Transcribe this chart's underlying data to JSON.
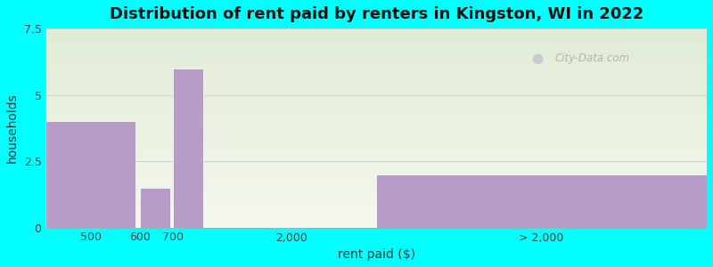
{
  "title": "Distribution of rent paid by renters in Kingston, WI in 2022",
  "xlabel": "rent paid ($)",
  "ylabel": "households",
  "background_color": "#00FFFF",
  "bar_color": "#b89cc8",
  "bar_edge_color": "#ffffff",
  "bar_heights": [
    4.0,
    1.5,
    6.0,
    0.0,
    2.0
  ],
  "bar_lefts": [
    0.0,
    1.0,
    1.35,
    1.7,
    3.5
  ],
  "bar_widths": [
    0.95,
    0.32,
    0.32,
    1.75,
    3.5
  ],
  "tick_positions": [
    0.475,
    1.0,
    1.35,
    2.6,
    5.25
  ],
  "tick_labels": [
    "500",
    "600",
    "700",
    "2,000",
    "> 2,000"
  ],
  "ylim": [
    0,
    7.5
  ],
  "xlim": [
    0.0,
    7.0
  ],
  "yticks": [
    0,
    2.5,
    5.0,
    7.5
  ],
  "grid_color": "#ddddcc",
  "title_fontsize": 13,
  "axis_fontsize": 10,
  "tick_fontsize": 9,
  "watermark_text": "City-Data.com",
  "plot_bg_top": "#e0edd8",
  "plot_bg_bottom": "#f5f8ee"
}
